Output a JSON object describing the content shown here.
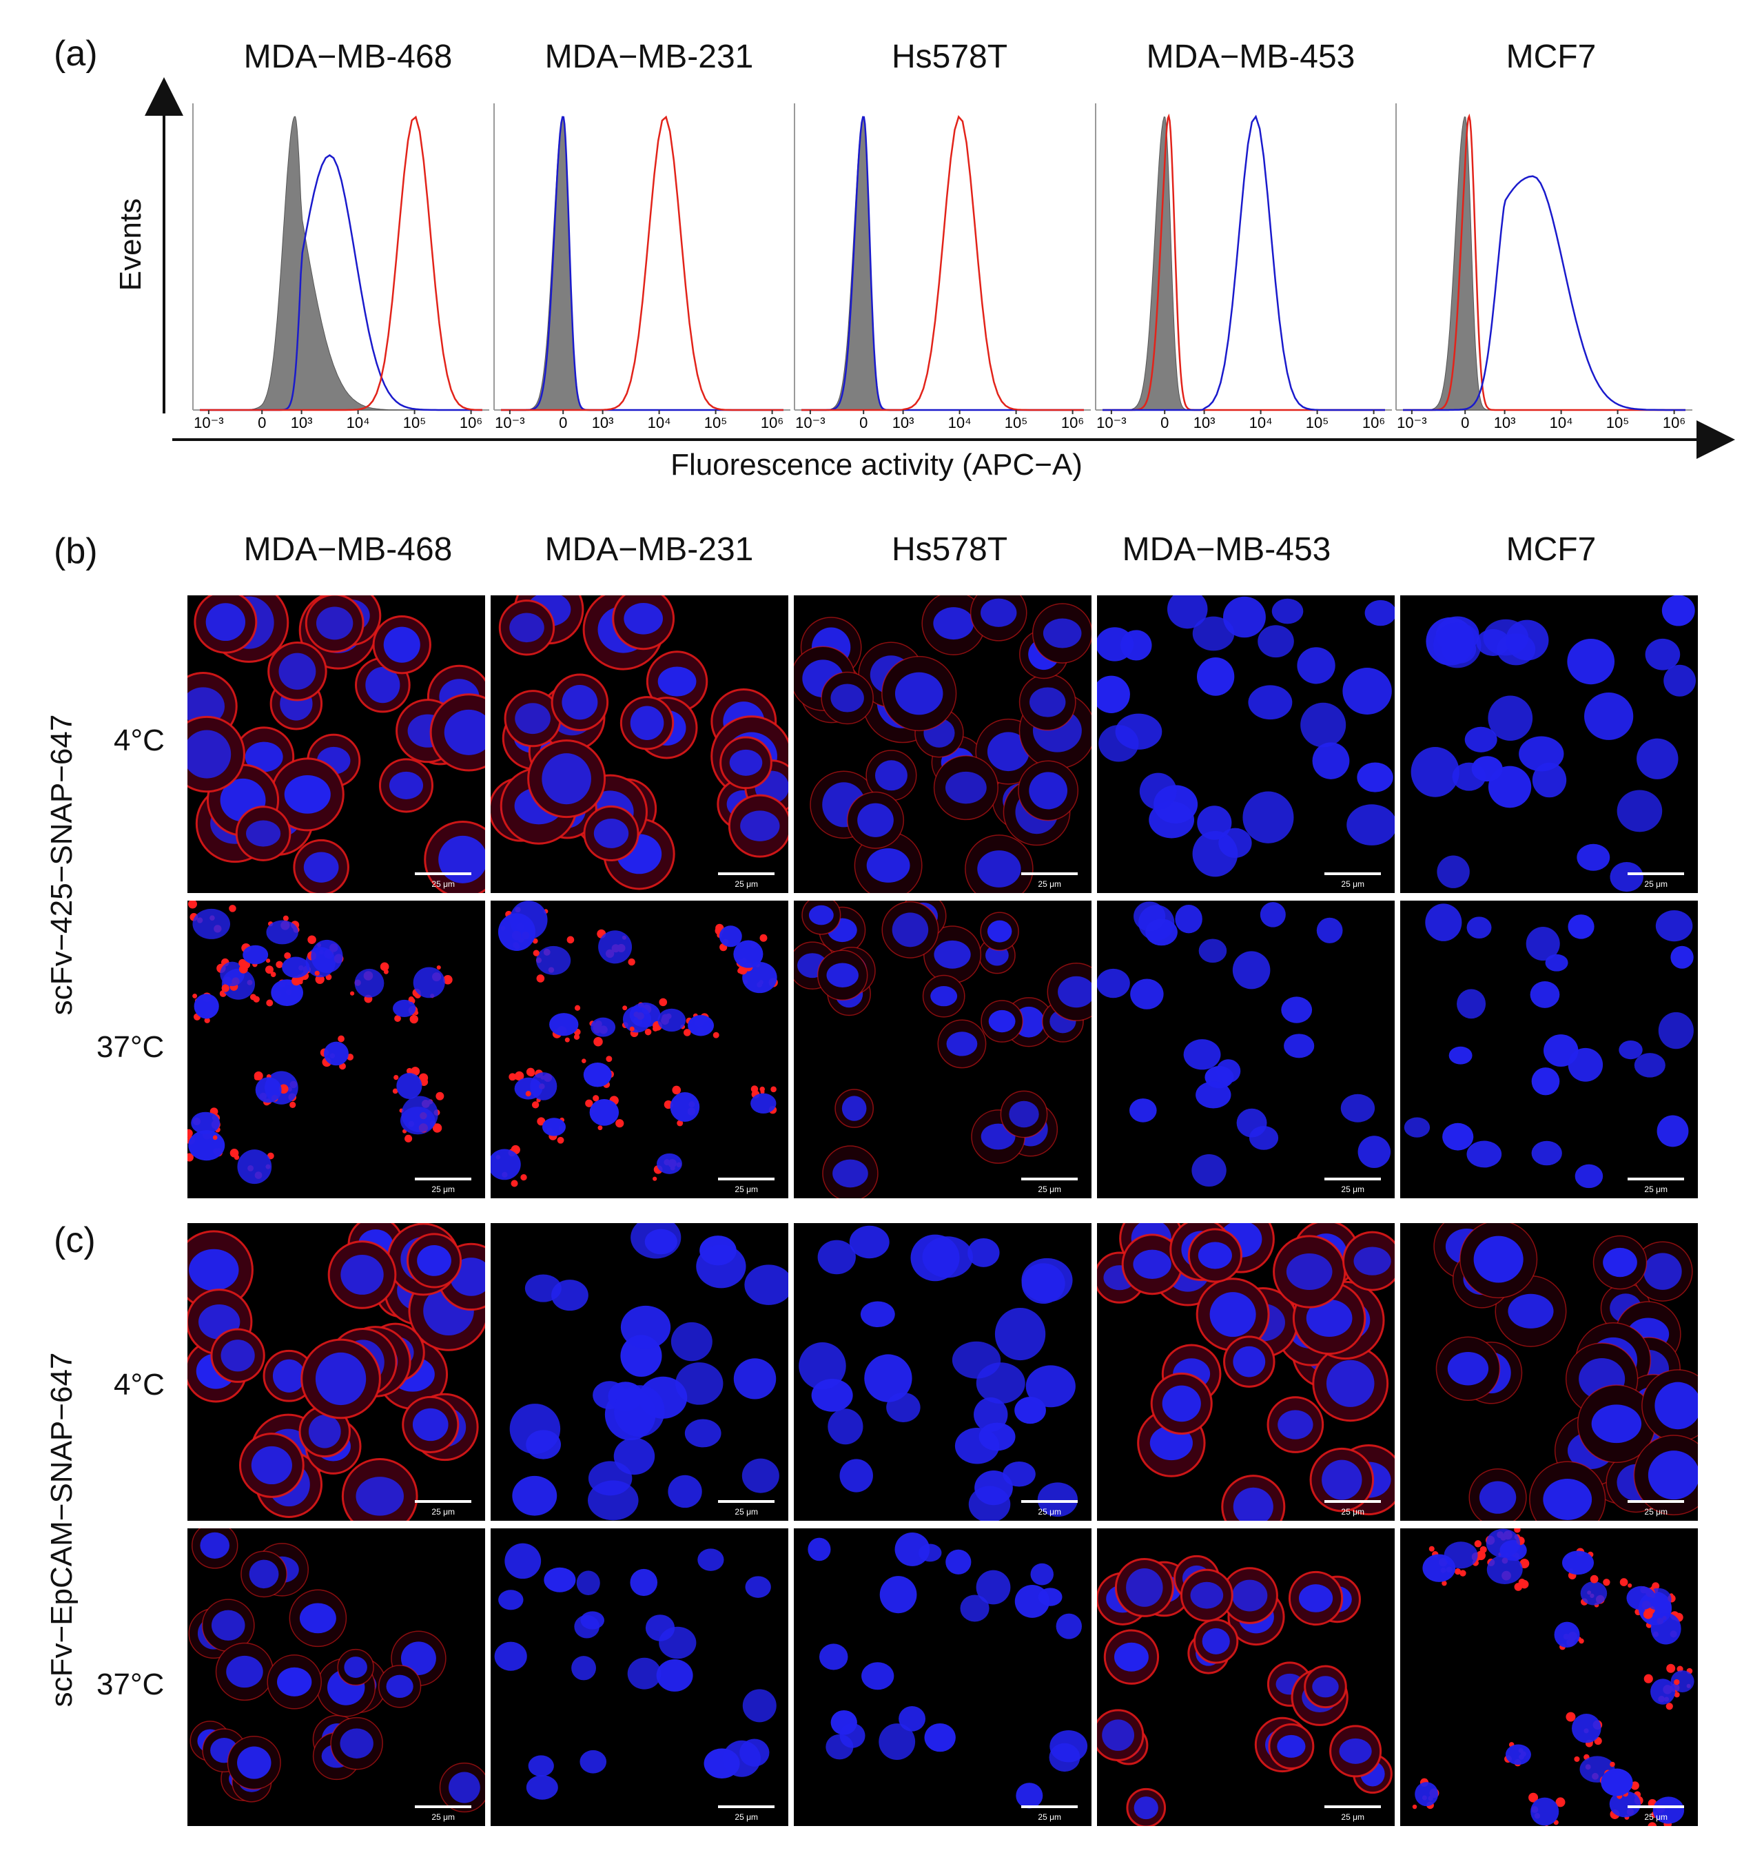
{
  "panels": {
    "a_label": "(a)",
    "b_label": "(b)",
    "c_label": "(c)"
  },
  "cell_lines": [
    "MDA−MB-468",
    "MDA−MB-231",
    "Hs578T",
    "MDA−MB-453",
    "MCF7"
  ],
  "cell_lines_b": [
    "MDA−MB-468",
    "MDA−MB-231",
    "Hs578T",
    "MDA−MB-453",
    "MCF7"
  ],
  "histogram": {
    "ylabel": "Events",
    "xlabel": "Fluorescence activity (APC−A)",
    "ticks": [
      "10⁻³",
      "0",
      "10³",
      "10⁴",
      "10⁵",
      "10⁶"
    ]
  },
  "rows": {
    "b_side_label": "scFv−425−SNAP−647",
    "c_side_label": "scFv−EpCAM−SNAP−647",
    "temp_4": "4°C",
    "temp_37": "37°C"
  },
  "scale_label": "25 μm",
  "colors": {
    "control_fill": "#7f7f7f",
    "red": "#e2231a",
    "blue": "#1a1acc",
    "nucleus": "#2222ee"
  },
  "chart_data": [
    {
      "type": "line",
      "title": "MDA−MB-468",
      "series": [
        {
          "name": "",
          "peak_log10": 2.5
        },
        {
          "name": "",
          "peak_log10": 3.5
        },
        {
          "name": "",
          "peak_log10": 5.0
        }
      ]
    },
    {
      "type": "line",
      "title": "MDA−MB-231",
      "series": [
        {
          "name": "",
          "peak_log10": 0
        },
        {
          "name": "",
          "peak_log10": 0
        },
        {
          "name": "",
          "peak_log10": 4.1
        }
      ]
    },
    {
      "type": "line",
      "title": "Hs578T",
      "series": [
        {
          "name": "",
          "peak_log10": 0
        },
        {
          "name": "",
          "peak_log10": 0
        },
        {
          "name": "",
          "peak_log10": 4.0
        }
      ]
    },
    {
      "type": "line",
      "title": "MDA−MB-453",
      "series": [
        {
          "name": "",
          "peak_log10": 0
        },
        {
          "name": "",
          "peak_log10": 0.3
        },
        {
          "name": "",
          "peak_log10": 3.9
        }
      ]
    },
    {
      "type": "line",
      "title": "MCF7",
      "series": [
        {
          "name": "",
          "peak_log10": 0
        },
        {
          "name": "",
          "peak_log10": 0.3
        },
        {
          "name": "",
          "peak_log10": 3.5
        }
      ]
    }
  ]
}
